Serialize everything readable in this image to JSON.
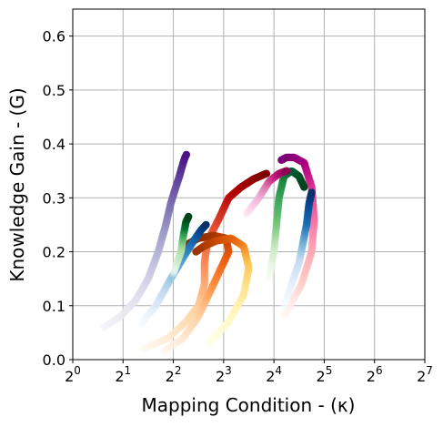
{
  "chart_data": {
    "type": "scatter",
    "title": "",
    "xlabel": "Mapping Condition - (κ)",
    "ylabel": "Knowledge Gain - (G)",
    "x_scale": "log2",
    "xlim_exponent": [
      0,
      7
    ],
    "ylim": [
      0,
      0.65
    ],
    "grid": true,
    "legend": "none",
    "x_tick_labels": [
      {
        "base": "2",
        "exp": "0"
      },
      {
        "base": "2",
        "exp": "1"
      },
      {
        "base": "2",
        "exp": "2"
      },
      {
        "base": "2",
        "exp": "3"
      },
      {
        "base": "2",
        "exp": "4"
      },
      {
        "base": "2",
        "exp": "5"
      },
      {
        "base": "2",
        "exp": "6"
      },
      {
        "base": "2",
        "exp": "7"
      }
    ],
    "y_tick_labels": [
      "0.0",
      "0.1",
      "0.2",
      "0.3",
      "0.4",
      "0.5",
      "0.6"
    ],
    "y_ticks": [
      0,
      0.1,
      0.2,
      0.3,
      0.4,
      0.5,
      0.6
    ],
    "series": [
      {
        "colormap": [
          "#f2f2f7",
          "#dcdaeb",
          "#b6b4d7",
          "#8b86bd",
          "#6a51a3",
          "#4a1486"
        ],
        "points": [
          [
            0.62,
            0.06
          ],
          [
            0.95,
            0.08
          ],
          [
            1.25,
            0.11
          ],
          [
            1.5,
            0.15
          ],
          [
            1.7,
            0.2
          ],
          [
            1.85,
            0.25
          ],
          [
            1.95,
            0.29
          ],
          [
            2.05,
            0.32
          ],
          [
            2.12,
            0.34
          ],
          [
            2.18,
            0.36
          ],
          [
            2.23,
            0.375
          ],
          [
            2.26,
            0.38
          ]
        ]
      },
      {
        "colormap": [
          "#fff7ec",
          "#fdd49e",
          "#fc8d59",
          "#e34a33",
          "#b30000",
          "#7f0000"
        ],
        "points": [
          [
            1.4,
            0.02
          ],
          [
            1.9,
            0.04
          ],
          [
            2.25,
            0.07
          ],
          [
            2.5,
            0.1
          ],
          [
            2.62,
            0.14
          ],
          [
            2.62,
            0.18
          ],
          [
            2.68,
            0.22
          ],
          [
            2.9,
            0.26
          ],
          [
            3.1,
            0.3
          ],
          [
            3.35,
            0.32
          ],
          [
            3.6,
            0.335
          ],
          [
            3.85,
            0.345
          ]
        ]
      },
      {
        "colormap": [
          "#fff5eb",
          "#fdd0a2",
          "#fd8d3c",
          "#e6550d",
          "#a63603",
          "#7f2704"
        ],
        "points": [
          [
            1.8,
            0.015
          ],
          [
            2.2,
            0.04
          ],
          [
            2.5,
            0.08
          ],
          [
            2.75,
            0.13
          ],
          [
            2.95,
            0.17
          ],
          [
            3.1,
            0.2
          ],
          [
            3.05,
            0.225
          ],
          [
            2.8,
            0.23
          ],
          [
            2.5,
            0.225
          ],
          [
            2.3,
            0.215
          ],
          [
            2.25,
            0.21
          ]
        ]
      },
      {
        "colormap": [
          "#ffffe5",
          "#fff7bc",
          "#fee391",
          "#fec44f",
          "#ec7014",
          "#cc4c02",
          "#993404"
        ],
        "points": [
          [
            2.7,
            0.03
          ],
          [
            3.1,
            0.07
          ],
          [
            3.4,
            0.12
          ],
          [
            3.5,
            0.17
          ],
          [
            3.4,
            0.21
          ],
          [
            3.15,
            0.225
          ],
          [
            2.85,
            0.22
          ],
          [
            2.6,
            0.21
          ],
          [
            2.45,
            0.2
          ]
        ]
      },
      {
        "colormap": [
          "#fff7f3",
          "#fcc5c0",
          "#fa9fb5",
          "#f768a1",
          "#dd3497",
          "#ae017e",
          "#7a0177"
        ],
        "points": [
          [
            4.2,
            0.08
          ],
          [
            4.55,
            0.14
          ],
          [
            4.75,
            0.2
          ],
          [
            4.8,
            0.26
          ],
          [
            4.75,
            0.32
          ],
          [
            4.6,
            0.365
          ],
          [
            4.4,
            0.375
          ],
          [
            4.25,
            0.375
          ],
          [
            4.15,
            0.37
          ]
        ]
      },
      {
        "colormap": [
          "#f7fcf5",
          "#c7e9c0",
          "#74c476",
          "#41ab5d",
          "#238b45",
          "#005a32",
          "#00441b"
        ],
        "points": [
          [
            3.9,
            0.15
          ],
          [
            4.0,
            0.2
          ],
          [
            4.05,
            0.25
          ],
          [
            4.1,
            0.3
          ],
          [
            4.2,
            0.34
          ],
          [
            4.35,
            0.35
          ],
          [
            4.5,
            0.34
          ],
          [
            4.6,
            0.32
          ]
        ]
      },
      {
        "colormap": [
          "#fde0ef",
          "#f1b6da",
          "#de77ae",
          "#c51b7d",
          "#8e0152"
        ],
        "points": [
          [
            3.45,
            0.27
          ],
          [
            3.7,
            0.3
          ],
          [
            3.9,
            0.33
          ],
          [
            4.1,
            0.345
          ],
          [
            4.25,
            0.35
          ]
        ]
      },
      {
        "colormap": [
          "#f7fbff",
          "#deebf7",
          "#c6dbef",
          "#9ecae1",
          "#6baed6",
          "#4292c6",
          "#2171b5",
          "#08519c",
          "#08306b"
        ],
        "points": [
          [
            1.35,
            0.065
          ],
          [
            1.65,
            0.1
          ],
          [
            1.95,
            0.15
          ],
          [
            2.2,
            0.19
          ],
          [
            2.4,
            0.22
          ],
          [
            2.55,
            0.24
          ],
          [
            2.65,
            0.25
          ]
        ]
      },
      {
        "colormap": [
          "#f7fcf5",
          "#c7e9c0",
          "#a1d99b",
          "#41ab5d",
          "#006d2c",
          "#00441b"
        ],
        "points": [
          [
            2.0,
            0.16
          ],
          [
            2.15,
            0.2
          ],
          [
            2.2,
            0.23
          ],
          [
            2.25,
            0.255
          ],
          [
            2.3,
            0.265
          ]
        ]
      },
      {
        "colormap": [
          "#f7fbff",
          "#deebf7",
          "#c6dbef",
          "#6baed6",
          "#2171b5",
          "#08519c",
          "#08306b"
        ],
        "points": [
          [
            4.2,
            0.1
          ],
          [
            4.5,
            0.18
          ],
          [
            4.65,
            0.25
          ],
          [
            4.7,
            0.29
          ],
          [
            4.75,
            0.31
          ]
        ]
      }
    ]
  }
}
